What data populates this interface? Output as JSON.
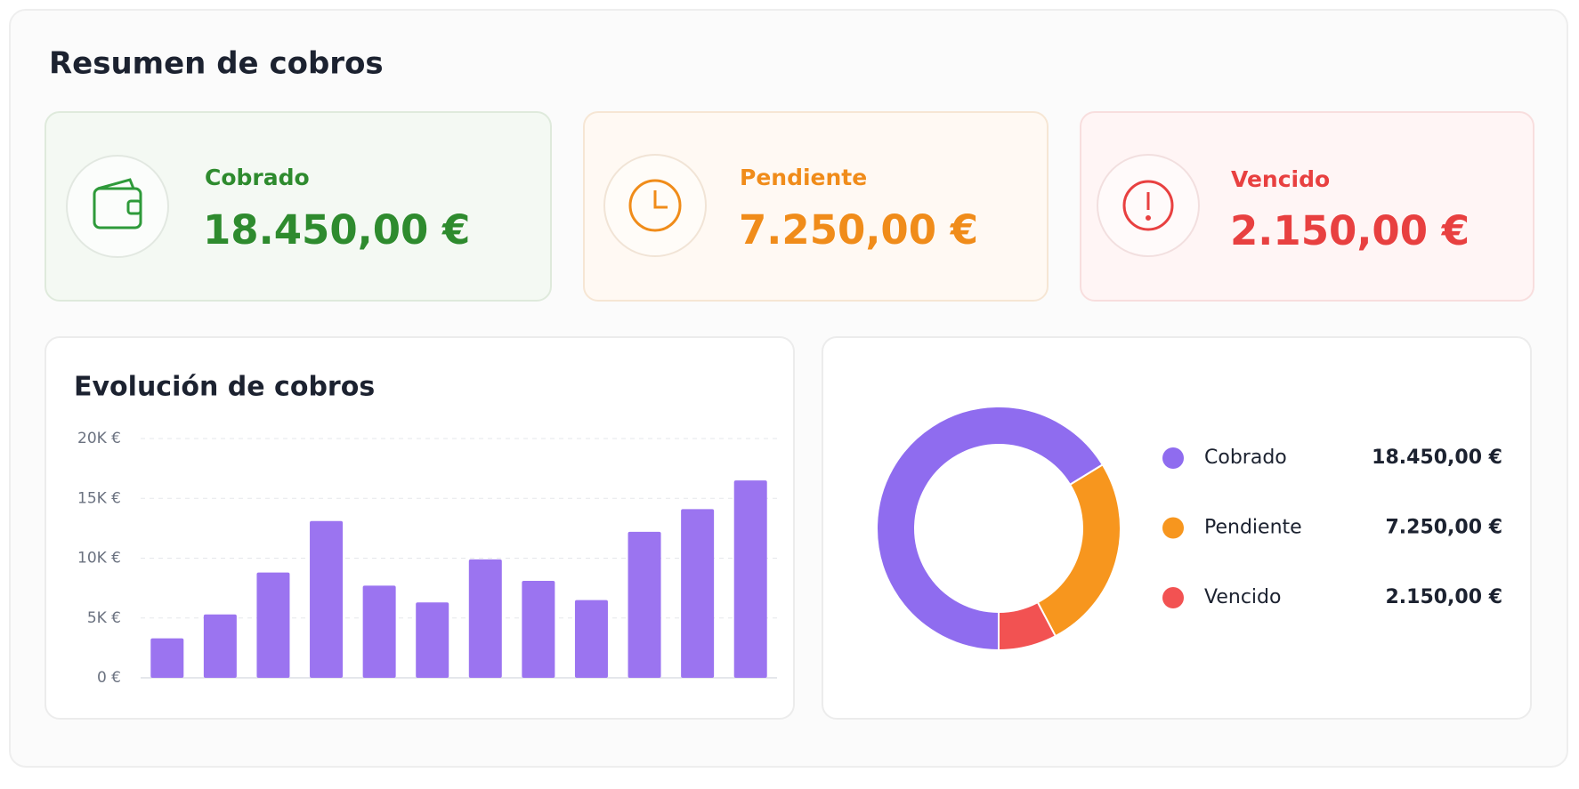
{
  "title": "Resumen de cobros",
  "cards": [
    {
      "label": "Cobrado",
      "amount": "18.450,00 €"
    },
    {
      "label": "Pendiente",
      "amount": "7.250,00 €"
    },
    {
      "label": "Vencido",
      "amount": "2.150,00 €"
    }
  ],
  "chart_data": [
    {
      "type": "bar",
      "title": "Evolución de cobros",
      "values": [
        3300,
        5300,
        8800,
        13100,
        7700,
        6300,
        9900,
        8100,
        6500,
        12200,
        14100,
        16500
      ],
      "color": "#9b74f0",
      "ylim": [
        0,
        20000
      ],
      "yticks": [
        {
          "value": 0,
          "label": "0 €"
        },
        {
          "value": 5000,
          "label": "5K €"
        },
        {
          "value": 10000,
          "label": "10K €"
        },
        {
          "value": 15000,
          "label": "15K €"
        },
        {
          "value": 20000,
          "label": "20K €"
        }
      ],
      "grid": true
    },
    {
      "type": "pie",
      "categories": [
        "Cobrado",
        "Pendiente",
        "Vencido"
      ],
      "values": [
        18450,
        7250,
        2150
      ],
      "value_labels": [
        "18.450,00 €",
        "7.250,00 €",
        "2.150,00 €"
      ],
      "colors": [
        "#8f6cef",
        "#f7961e",
        "#f25252"
      ]
    }
  ]
}
